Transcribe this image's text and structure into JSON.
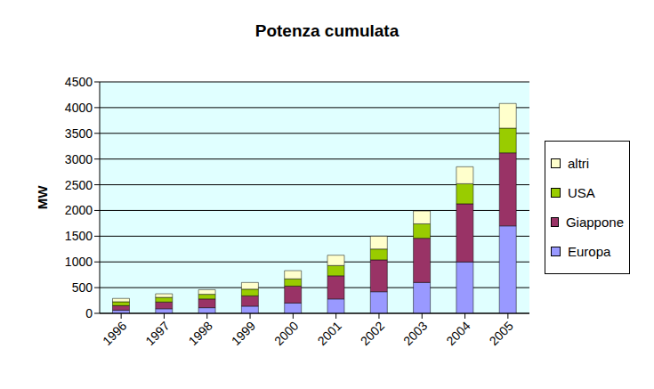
{
  "chart_data": {
    "type": "bar",
    "title": "Potenza cumulata",
    "y_label": "MW",
    "categories": [
      "1996",
      "1997",
      "1998",
      "1999",
      "2000",
      "2001",
      "2002",
      "2003",
      "2004",
      "2005"
    ],
    "series": [
      {
        "name": "Europa",
        "color": "#9999ff",
        "values": [
          60,
          90,
          110,
          140,
          200,
          280,
          420,
          600,
          1000,
          1700
        ]
      },
      {
        "name": "Giappone",
        "color": "#993366",
        "values": [
          90,
          130,
          170,
          200,
          330,
          450,
          620,
          860,
          1130,
          1420
        ]
      },
      {
        "name": "USA",
        "color": "#99cc00",
        "values": [
          75,
          90,
          90,
          130,
          140,
          200,
          210,
          280,
          390,
          480
        ]
      },
      {
        "name": "altri",
        "color": "#ffffcc",
        "values": [
          65,
          70,
          90,
          130,
          160,
          200,
          250,
          250,
          330,
          480
        ]
      }
    ],
    "ylim": [
      0,
      4500
    ],
    "yticks": [
      0,
      500,
      1000,
      1500,
      2000,
      2500,
      3000,
      3500,
      4000,
      4500
    ],
    "grid": true,
    "stacked": true,
    "legend": "right"
  }
}
